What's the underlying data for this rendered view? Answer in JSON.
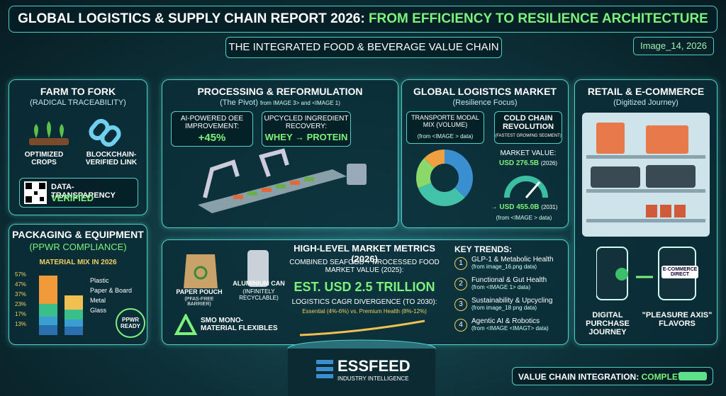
{
  "header": {
    "title": "GLOBAL LOGISTICS & SUPPLY CHAIN REPORT 2026:",
    "title_highlight": "FROM EFFICIENCY TO RESILIENCE ARCHITECTURE",
    "subtitle": "THE INTEGRATED FOOD & BEVERAGE VALUE CHAIN",
    "tag": "Image_14, 2026"
  },
  "farm": {
    "title": "FARM TO FORK",
    "subtitle": "(RADICAL TRACEABILITY)",
    "item1": "OPTIMIZED CROPS",
    "item2": "BLOCKCHAIN-VERIFIED LINK",
    "badge": "DATA-TRANSPARENCY",
    "badge_status": "VERIFIED"
  },
  "processing": {
    "title": "PROCESSING & REFORMULATION",
    "subtitle": "(The Pivot)",
    "source": "from IMAGE 3> and <IMAGE 1)",
    "box1_label": "AI-POWERED OEE IMPROVEMENT:",
    "box1_value": "+45%",
    "box2_label": "UPCYCLED INGREDIENT RECOVERY:",
    "box2_value": "WHEY → PROTEIN"
  },
  "logistics": {
    "title": "GLOBAL LOGISTICS MARKET",
    "subtitle": "(Resilience Focus)",
    "modal_label": "TRANSPORTE MODAL MIX (VOLUME)",
    "modal_source": "(from <IMAGE > data)",
    "cold_title": "COLD CHAIN REVOLUTION",
    "cold_sub": "(FASTEST GROWING SEGMENT)",
    "market_label": "MARKET VALUE:",
    "value_2026": "USD 276.5B",
    "year_2026": "(2026)",
    "value_2031": "→ USD 455.0B",
    "year_2031": "(2031)",
    "value_source": "(from <IMAGE > data)"
  },
  "retail": {
    "title": "RETAIL & E-COMMERCE",
    "subtitle": "(Digitized Journey)",
    "phone_label": "E-COMMERCE DIRECT",
    "item1": "DIGITAL PURCHASE JOURNEY",
    "item2": "\"PLEASURE AXIS\" FLAVORS"
  },
  "packaging": {
    "title": "PACKAGING & EQUIPMENT",
    "subtitle": "(PPWR COMPLIANCE)",
    "chart_title": "MATERIAL MIX IN 2026",
    "axis_labels": [
      "57%",
      "47%",
      "37%",
      "23%",
      "17%",
      "13%"
    ],
    "legend": [
      "Plastic",
      "Paper & Board",
      "Metal",
      "Glass"
    ],
    "badge": "PPWR READY"
  },
  "materials": {
    "pouch": "PAPER POUCH",
    "pouch_sub": "(PFAS-FREE BARRIER)",
    "can": "ALUMINIUM CAN",
    "can_sub": "(INFINITELY RECYCLABLE)",
    "flex": "SMO MONO-MATERIAL FLEXIBLES"
  },
  "metrics": {
    "title": "HIGH-LEVEL MARKET METRICS (2026)",
    "market_label": "COMBINED SEAFOOD + PROCESSED FOOD MARKET VALUE (2025):",
    "market_value": "EST. USD 2.5 TRILLION",
    "cagr_label": "LOGISTICS CAGR DIVERGENCE (TO 2030):",
    "cagr_value": "Essential (4%-6%) vs. Premium Health (8%-12%)"
  },
  "trends": {
    "title": "KEY TRENDS:",
    "items": [
      {
        "number": "1",
        "name": "GLP-1 & Metabolic Health",
        "source": "(from image_16.png data)"
      },
      {
        "number": "2",
        "name": "Functional & Gut Health",
        "source": "(from <IMAGE 1> data)"
      },
      {
        "number": "3",
        "name": "Sustainability & Upcycling",
        "source": "(from image_18 png data)"
      },
      {
        "number": "4",
        "name": "Agentic AI & Robotics",
        "source": "(from <IMAGE <IMAGT> data)"
      }
    ]
  },
  "footer": {
    "brand": "ESSFEED",
    "brand_sub": "INDUSTRY INTELLIGENCE",
    "status_label": "VALUE CHAIN INTEGRATION:",
    "status_value": "COMPLETE"
  }
}
